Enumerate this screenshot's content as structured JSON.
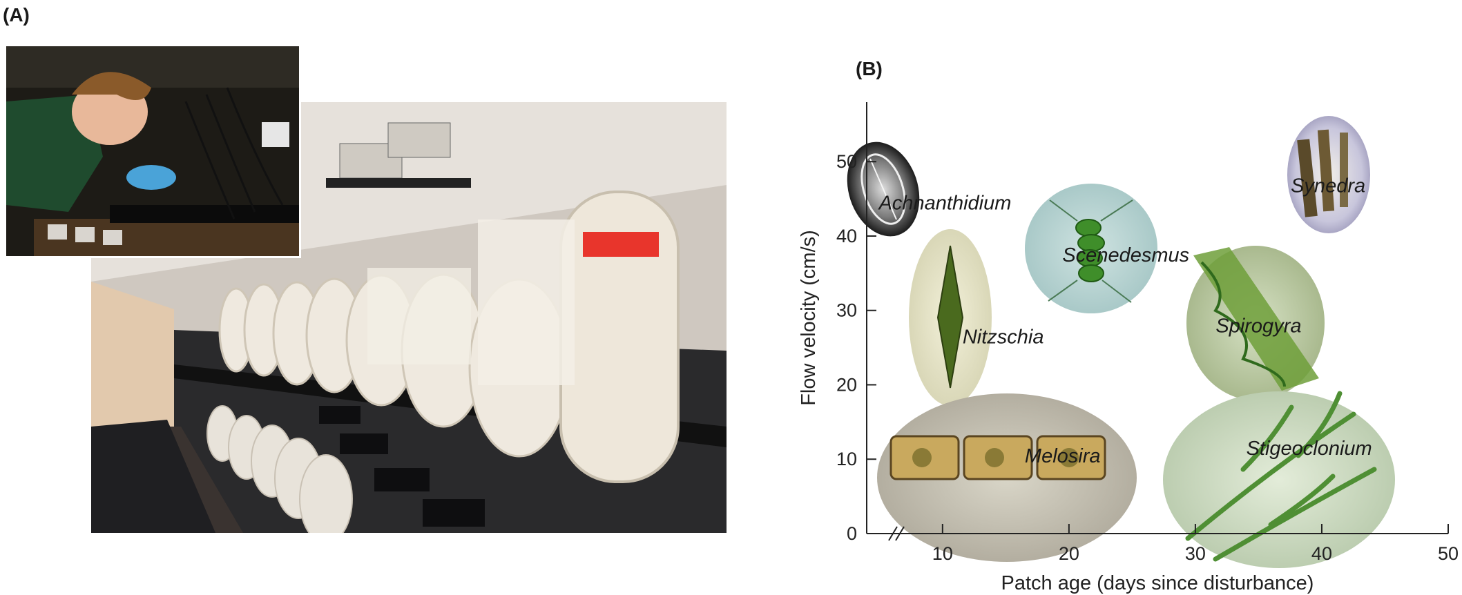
{
  "panel_a": {
    "label": "(A)"
  },
  "panel_b": {
    "label": "(B)"
  },
  "chart_data": {
    "type": "scatter",
    "xlabel": "Patch age (days since disturbance)",
    "ylabel": "Flow velocity (cm/s)",
    "xlim": [
      4,
      50
    ],
    "ylim": [
      0,
      58
    ],
    "x_ticks": [
      10,
      20,
      30,
      40,
      50
    ],
    "y_ticks": [
      0,
      10,
      20,
      30,
      40,
      50
    ],
    "axis_break": "x",
    "points": [
      {
        "label": "Achnanthidium",
        "x": 10.2,
        "y": 44.5
      },
      {
        "label": "Synedra",
        "x": 40.5,
        "y": 46.8
      },
      {
        "label": "Scenedesmus",
        "x": 24.5,
        "y": 37.5
      },
      {
        "label": "Nitzschia",
        "x": 14.8,
        "y": 26.5
      },
      {
        "label": "Spirogyra",
        "x": 35.0,
        "y": 28.0
      },
      {
        "label": "Melosira",
        "x": 19.5,
        "y": 10.5
      },
      {
        "label": "Stigeoclonium",
        "x": 39.0,
        "y": 11.5
      }
    ]
  }
}
